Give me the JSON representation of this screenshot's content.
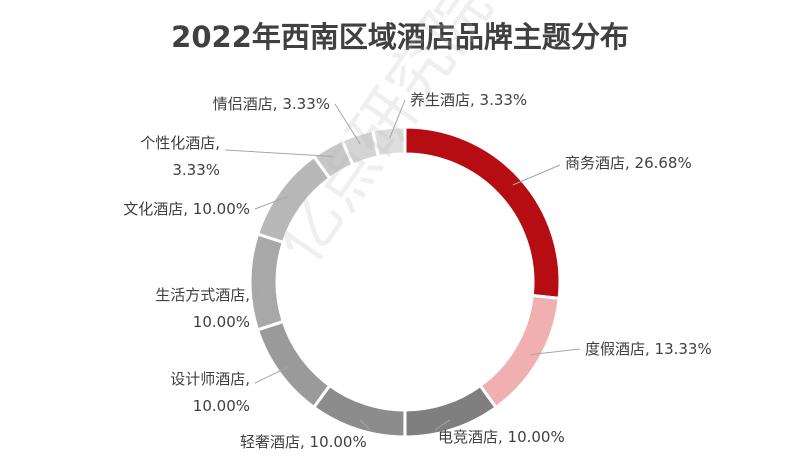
{
  "chart_data": {
    "type": "donut",
    "title": "2022年西南区域酒店品牌主题分布",
    "watermark": "亿点研究院",
    "values": [
      26.68,
      13.33,
      10.0,
      10.0,
      10.0,
      10.0,
      10.0,
      3.33,
      3.33,
      3.33
    ],
    "value_labels": [
      "商务酒店, 26.68%",
      "度假酒店, 13.33%",
      "电竞酒店, 10.00%",
      "轻奢酒店, 10.00%",
      "设计师酒店,\n10.00%",
      "生活方式酒店,\n10.00%",
      "文化酒店, 10.00%",
      "个性化酒店,\n3.33%",
      "情侣酒店, 3.33%",
      "养生酒店, 3.33%"
    ],
    "colors": [
      "#b50d12",
      "#f0b0b0",
      "#7f7f7f",
      "#8c8c8c",
      "#9a9a9a",
      "#a8a8a8",
      "#b8b8b8",
      "#c8c8c8",
      "#d4d4d4",
      "#dedede"
    ]
  }
}
